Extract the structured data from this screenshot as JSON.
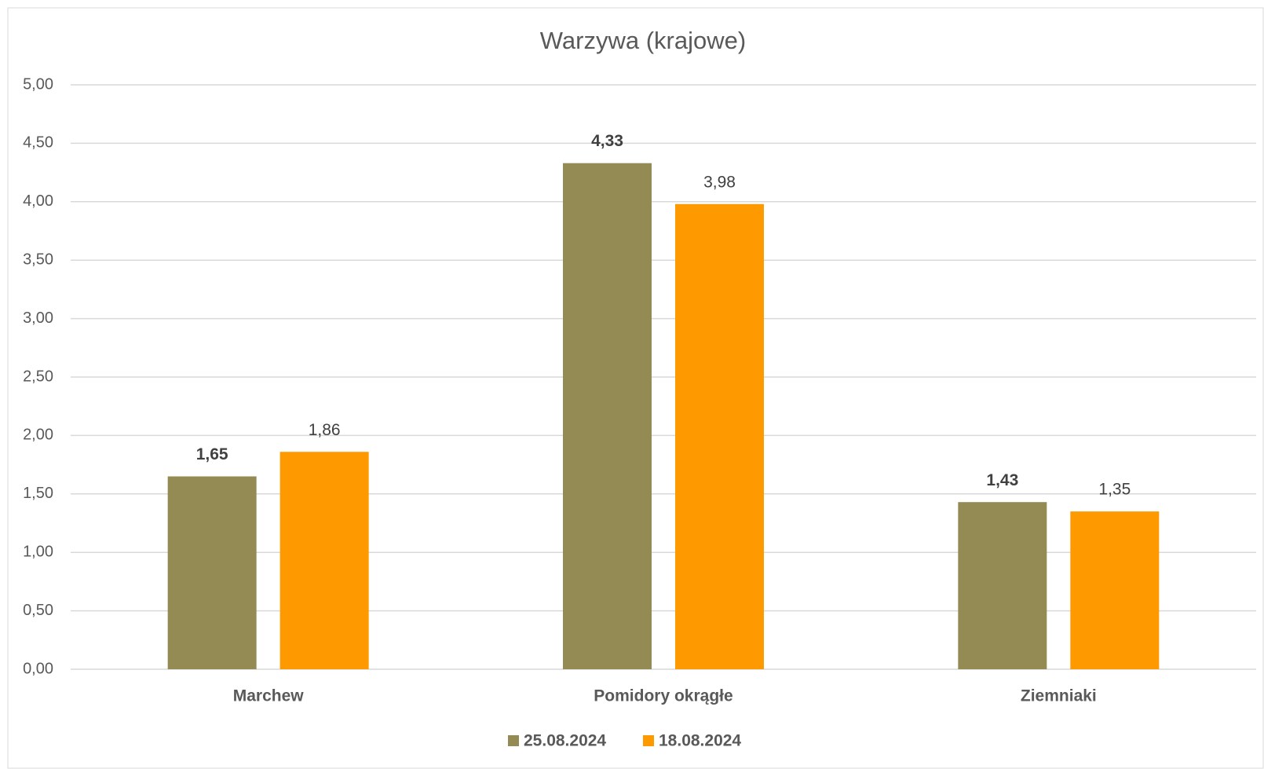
{
  "chart_data": {
    "type": "bar",
    "title": "Warzywa (krajowe)",
    "categories": [
      "Marchew",
      "Pomidory okrągłe",
      "Ziemniaki"
    ],
    "series": [
      {
        "name": "25.08.2024",
        "color": "#948a54",
        "values": [
          1.65,
          4.33,
          1.43
        ],
        "value_labels": [
          "1,65",
          "4,33",
          "1,43"
        ]
      },
      {
        "name": "18.08.2024",
        "color": "#ff9900",
        "values": [
          1.86,
          3.98,
          1.35
        ],
        "value_labels": [
          "1,86",
          "3,98",
          "1,35"
        ]
      }
    ],
    "ylim": [
      0,
      5
    ],
    "yticks": [
      {
        "value": 0,
        "label": "0,00"
      },
      {
        "value": 0.5,
        "label": "0,50"
      },
      {
        "value": 1,
        "label": "1,00"
      },
      {
        "value": 1.5,
        "label": "1,50"
      },
      {
        "value": 2,
        "label": "2,00"
      },
      {
        "value": 2.5,
        "label": "2,50"
      },
      {
        "value": 3,
        "label": "3,00"
      },
      {
        "value": 3.5,
        "label": "3,50"
      },
      {
        "value": 4,
        "label": "4,00"
      },
      {
        "value": 4.5,
        "label": "4,50"
      },
      {
        "value": 5,
        "label": "5,00"
      }
    ],
    "grid": true,
    "legend": "bottom"
  }
}
